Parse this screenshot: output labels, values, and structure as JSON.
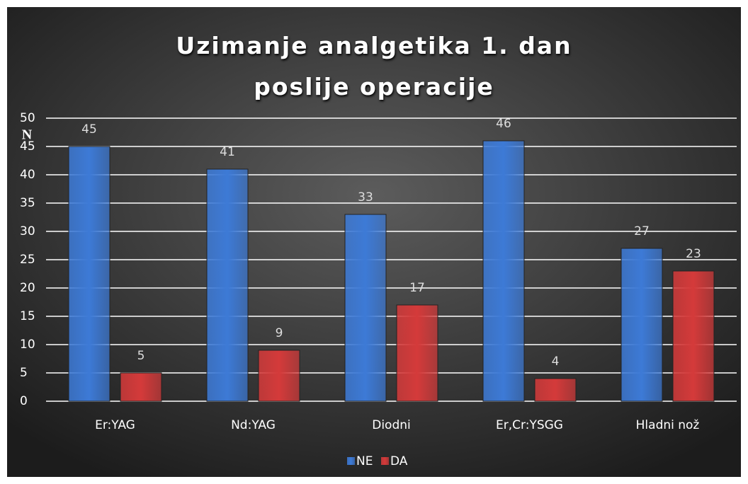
{
  "chart_data": {
    "type": "bar",
    "title": "Uzimanje analgetika 1. dan poslije operacije",
    "y_label": "N",
    "categories": [
      "Er:YAG",
      "Nd:YAG",
      "Diodni",
      "Er,Cr:YSGG",
      "Hladni nož"
    ],
    "series": [
      {
        "name": "NE",
        "color": "#3d7ad6",
        "values": [
          45,
          41,
          33,
          46,
          27
        ]
      },
      {
        "name": "DA",
        "color": "#d43a3a",
        "values": [
          5,
          9,
          17,
          4,
          23
        ]
      }
    ],
    "ylim": [
      0,
      50
    ],
    "yticks": [
      0,
      5,
      10,
      15,
      20,
      25,
      30,
      35,
      40,
      45,
      50
    ],
    "grid": true,
    "legend": "bottom"
  }
}
